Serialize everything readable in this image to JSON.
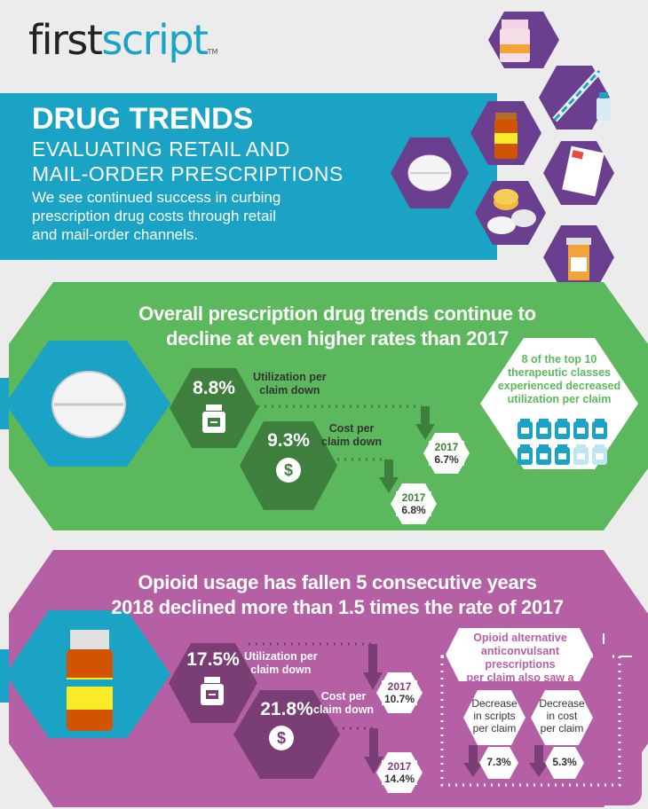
{
  "brand": {
    "logo_left": "first",
    "logo_right": "script",
    "logo_tm": "TM"
  },
  "header": {
    "title": "DRUG TRENDS",
    "subtitle_line1": "EVALUATING RETAIL AND",
    "subtitle_line2": "MAIL-ORDER PRESCRIPTIONS",
    "description": "We see continued success in curbing prescription drug costs through retail and mail-order channels."
  },
  "overall": {
    "heading_line1": "Overall prescription drug trends continue to",
    "heading_line2": "decline at even higher rates than 2017",
    "utilization": {
      "value": "8.8%",
      "label_line1": "Utilization per",
      "label_line2": "claim down",
      "prev_year": "2017",
      "prev_value": "6.7%"
    },
    "cost": {
      "value": "9.3%",
      "label_line1": "Cost per",
      "label_line2": "claim down",
      "prev_year": "2017",
      "prev_value": "6.8%"
    },
    "classes": {
      "line1": "8 of the top 10",
      "line2": "therapeutic classes",
      "line3": "experienced decreased",
      "line4": "utilization per claim",
      "decreased_count": 8,
      "total": 10
    }
  },
  "opioid": {
    "heading_line1": "Opioid usage has fallen 5 consecutive years",
    "heading_line2": "2018 declined more than 1.5 times the rate of 2017",
    "utilization": {
      "value": "17.5%",
      "label_line1": "Utilization per",
      "label_line2": "claim down",
      "prev_year": "2017",
      "prev_value": "10.7%"
    },
    "cost": {
      "value": "21.8%",
      "label_line1": "Cost per",
      "label_line2": "claim down",
      "prev_year": "2017",
      "prev_value": "14.4%"
    },
    "alternative": {
      "line1": "Opioid alternative",
      "line2": "anticonvulsant prescriptions",
      "line3": "per claim also saw a decline"
    },
    "scripts": {
      "line1": "Decrease",
      "line2": "in scripts",
      "line3": "per claim",
      "value": "7.3%"
    },
    "costdec": {
      "line1": "Decrease",
      "line2": "in cost",
      "line3": "per claim",
      "value": "5.3%"
    }
  },
  "colors": {
    "teal": "#1aa3c4",
    "green": "#5cb85c",
    "darkgreen": "#3e7f3e",
    "magenta": "#b55fa5",
    "darkpurple": "#7a3e74",
    "hexpurple": "#6b3f8f"
  },
  "icons": {
    "hex_icons": [
      "pill-bottle-icon",
      "syringe-icon",
      "vial-icon",
      "orange-bottle-icon",
      "tablet-icon",
      "prescription-pad-icon",
      "coins-pills-icon",
      "medicine-bottle-icon"
    ]
  }
}
